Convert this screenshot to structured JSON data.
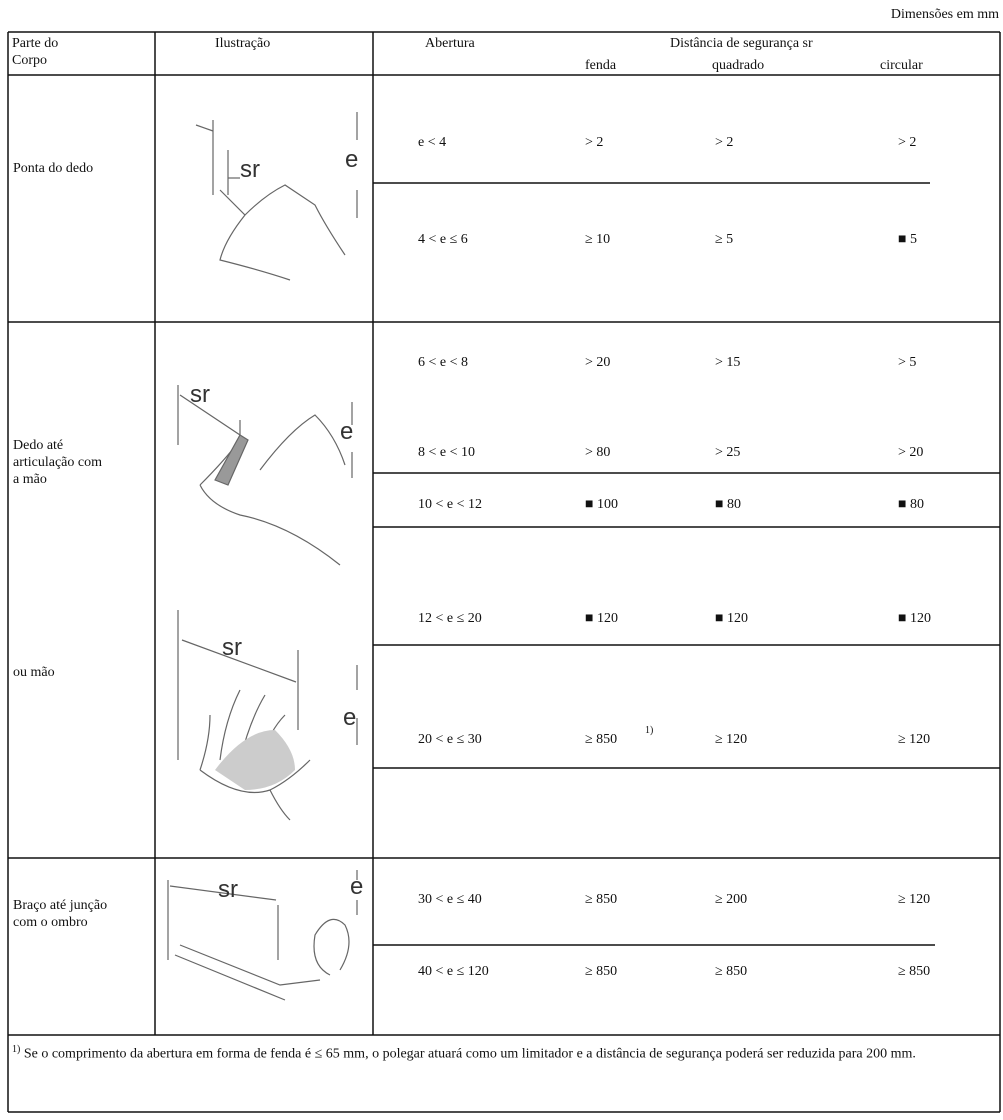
{
  "header": {
    "units": "Dimensões em mm"
  },
  "table": {
    "columns": {
      "body_part": "Parte do Corpo",
      "illustration": "Ilustração",
      "opening": "Abertura",
      "distance": "Distância de segurança sr",
      "fenda": "fenda",
      "quadrado": "quadrado",
      "circular": "circular"
    },
    "sections": [
      {
        "body_part": [
          "Ponta do dedo"
        ],
        "illustrations": [
          {
            "distance": "sr",
            "gap": "e"
          }
        ],
        "rows": [
          {
            "opening": "e < 4",
            "fenda": "> 2",
            "quadrado": "> 2",
            "circular": "> 2"
          },
          {
            "opening": "4 < e ≤ 6",
            "fenda": "≥ 10",
            "quadrado": "≥ 5",
            "circular": "■ 5"
          }
        ]
      },
      {
        "body_part": [
          "Dedo até articulação com a mão",
          "ou mão"
        ],
        "illustrations": [
          {
            "distance": "sr",
            "gap": "e"
          },
          {
            "distance": "sr",
            "gap": "e"
          }
        ],
        "rows": [
          {
            "opening": "6 < e < 8",
            "fenda": "> 20",
            "quadrado": "> 15",
            "circular": "> 5"
          },
          {
            "opening": "8 < e < 10",
            "fenda": "> 80",
            "quadrado": "> 25",
            "circular": "> 20"
          },
          {
            "opening": "10 < e < 12",
            "fenda": "■ 100",
            "quadrado": "■ 80",
            "circular": "■ 80"
          },
          {
            "opening": "12 < e ≤ 20",
            "fenda": "■ 120",
            "quadrado": "■ 120",
            "circular": "■ 120"
          },
          {
            "opening": "20 < e ≤ 30",
            "fenda": "≥ 850",
            "fenda_note": "1)",
            "quadrado": "≥ 120",
            "circular": "≥ 120"
          }
        ]
      },
      {
        "body_part": [
          "Braço até junção com o ombro"
        ],
        "illustrations": [
          {
            "distance": "sr",
            "gap": "e"
          }
        ],
        "rows": [
          {
            "opening": "30 < e ≤ 40",
            "fenda": "≥ 850",
            "quadrado": "≥ 200",
            "circular": "≥ 120"
          },
          {
            "opening": "40 < e ≤ 120",
            "fenda": "≥ 850",
            "quadrado": "≥ 850",
            "circular": "≥ 850"
          }
        ]
      }
    ]
  },
  "footnote": {
    "marker": "1)",
    "text": "Se o comprimento da abertura em forma de fenda é ≤ 65 mm, o polegar atuará como um limitador e a distância de segurança poderá ser reduzida para 200 mm."
  }
}
